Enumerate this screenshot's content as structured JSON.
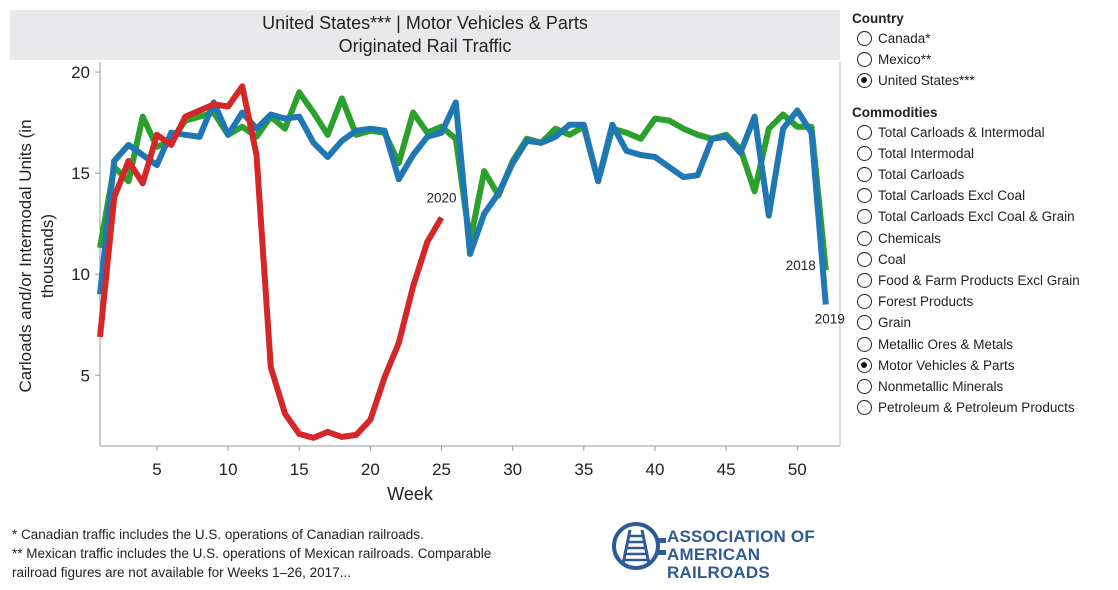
{
  "title": {
    "line1": "United States*** | Motor Vehicles & Parts",
    "line2": "Originated Rail Traffic"
  },
  "chart_data": {
    "type": "line",
    "xlabel": "Week",
    "ylabel": "Carloads and/or Intermodal Units (in thousands)",
    "ylabel_lines": [
      "Carloads and/or Intermodal Units (in",
      "thousands)"
    ],
    "xlim": [
      1,
      53
    ],
    "ylim": [
      1.5,
      20.5
    ],
    "xticks": [
      5,
      10,
      15,
      20,
      25,
      30,
      35,
      40,
      45,
      50
    ],
    "yticks": [
      5,
      10,
      15,
      20
    ],
    "series": [
      {
        "name": "2018",
        "color": "#2ca02c",
        "label": "2018",
        "x": [
          1,
          2,
          3,
          4,
          5,
          6,
          7,
          8,
          9,
          10,
          11,
          12,
          13,
          14,
          15,
          16,
          17,
          18,
          19,
          20,
          21,
          22,
          23,
          24,
          25,
          26,
          27,
          28,
          29,
          30,
          31,
          32,
          33,
          34,
          35,
          36,
          37,
          38,
          39,
          40,
          41,
          42,
          43,
          44,
          45,
          46,
          47,
          48,
          49,
          50,
          51,
          52
        ],
        "values": [
          11.3,
          15.3,
          14.6,
          17.8,
          16.3,
          16.6,
          17.6,
          17.8,
          18.0,
          16.9,
          17.3,
          16.8,
          17.8,
          17.2,
          19.0,
          18.0,
          16.9,
          18.7,
          16.9,
          17.1,
          17.0,
          15.5,
          18.0,
          17.0,
          17.3,
          16.7,
          11.6,
          15.1,
          13.9,
          15.6,
          16.7,
          16.5,
          17.2,
          16.9,
          17.3,
          14.6,
          17.2,
          17.0,
          16.7,
          17.7,
          17.6,
          17.2,
          16.9,
          16.7,
          16.9,
          16.2,
          14.1,
          17.2,
          17.9,
          17.3,
          17.3,
          10.2
        ]
      },
      {
        "name": "2019",
        "color": "#1f77b4",
        "label": "2019",
        "x": [
          1,
          2,
          3,
          4,
          5,
          6,
          7,
          8,
          9,
          10,
          11,
          12,
          13,
          14,
          15,
          16,
          17,
          18,
          19,
          20,
          21,
          22,
          23,
          24,
          25,
          26,
          27,
          28,
          29,
          30,
          31,
          32,
          33,
          34,
          35,
          36,
          37,
          38,
          39,
          40,
          41,
          42,
          43,
          44,
          45,
          46,
          47,
          48,
          49,
          50,
          51,
          52
        ],
        "values": [
          9.0,
          15.6,
          16.4,
          15.9,
          15.4,
          17.0,
          16.9,
          16.8,
          18.5,
          16.9,
          18.0,
          17.2,
          17.9,
          17.7,
          17.8,
          16.5,
          15.8,
          16.6,
          17.1,
          17.2,
          17.1,
          14.7,
          15.9,
          16.8,
          17.0,
          18.5,
          11.0,
          13.0,
          14.0,
          15.5,
          16.6,
          16.5,
          16.8,
          17.4,
          17.4,
          14.6,
          17.4,
          16.1,
          15.9,
          15.8,
          15.3,
          14.8,
          14.9,
          16.7,
          16.8,
          16.0,
          17.8,
          12.9,
          17.2,
          18.1,
          17.0,
          8.5
        ]
      },
      {
        "name": "2020",
        "color": "#d62728",
        "label": "2020",
        "x": [
          1,
          2,
          3,
          4,
          5,
          6,
          7,
          8,
          9,
          10,
          11,
          12,
          13,
          14,
          15,
          16,
          17,
          18,
          19,
          20,
          21,
          22,
          23,
          24,
          25
        ],
        "values": [
          6.9,
          13.8,
          15.6,
          14.5,
          16.9,
          16.4,
          17.8,
          18.1,
          18.4,
          18.3,
          19.3,
          15.9,
          5.4,
          3.1,
          2.1,
          1.9,
          2.2,
          1.95,
          2.05,
          2.8,
          4.9,
          6.6,
          9.4,
          11.6,
          12.8
        ]
      }
    ]
  },
  "panel": {
    "country_heading": "Country",
    "countries": [
      {
        "label": "Canada*",
        "selected": false
      },
      {
        "label": "Mexico**",
        "selected": false
      },
      {
        "label": "United States***",
        "selected": true
      }
    ],
    "commodities_heading": "Commodities",
    "commodities": [
      {
        "label": "Total Carloads & Intermodal",
        "selected": false
      },
      {
        "label": "Total Intermodal",
        "selected": false
      },
      {
        "label": "Total Carloads",
        "selected": false
      },
      {
        "label": "Total Carloads Excl Coal",
        "selected": false
      },
      {
        "label": "Total Carloads Excl Coal & Grain",
        "selected": false
      },
      {
        "label": "Chemicals",
        "selected": false
      },
      {
        "label": "Coal",
        "selected": false
      },
      {
        "label": "Food & Farm Products Excl Grain",
        "selected": false
      },
      {
        "label": "Forest Products",
        "selected": false
      },
      {
        "label": "Grain",
        "selected": false
      },
      {
        "label": "Metallic Ores & Metals",
        "selected": false
      },
      {
        "label": "Motor Vehicles & Parts",
        "selected": true
      },
      {
        "label": "Nonmetallic Minerals",
        "selected": false
      },
      {
        "label": "Petroleum & Petroleum Products",
        "selected": false
      }
    ]
  },
  "footnotes": [
    "* Canadian traffic includes the U.S. operations of Canadian railroads.",
    "** Mexican traffic includes the U.S. operations of Mexican railroads. Comparable",
    "railroad figures are not available for Weeks 1–26, 2017..."
  ],
  "logo": {
    "line1": "ASSOCIATION OF",
    "line2": "AMERICAN RAILROADS",
    "color": "#2e5a96"
  }
}
